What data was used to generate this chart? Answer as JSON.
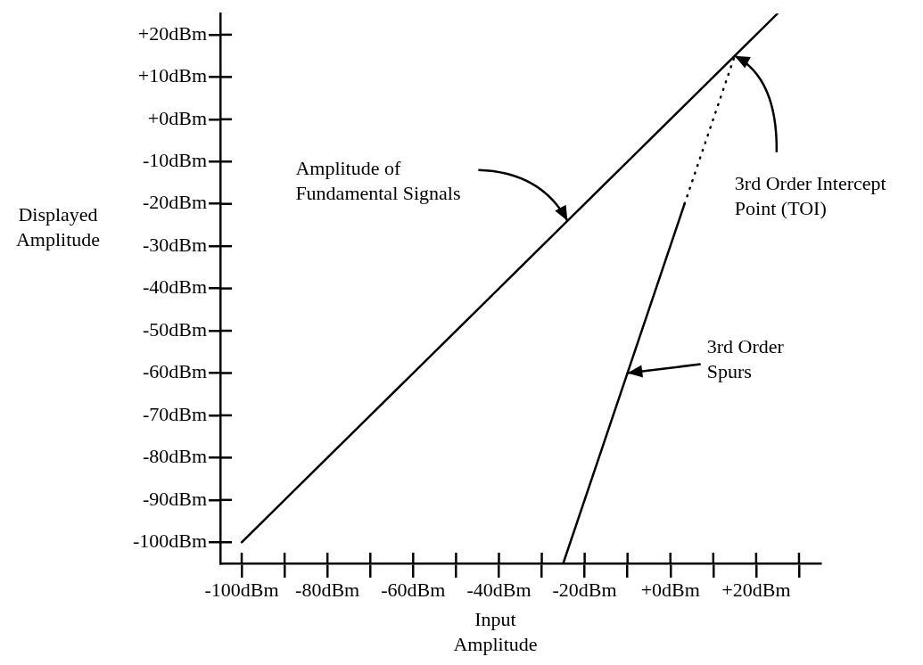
{
  "chart_data": {
    "type": "line",
    "xlabel": "Input\nAmplitude",
    "ylabel": "Displayed\nAmplitude",
    "xlim": [
      -105,
      35
    ],
    "ylim": [
      -105,
      25
    ],
    "xticks": [
      {
        "value": -100,
        "label": "-100dBm"
      },
      {
        "value": -90,
        "label": null
      },
      {
        "value": -80,
        "label": "-80dBm"
      },
      {
        "value": -70,
        "label": null
      },
      {
        "value": -60,
        "label": "-60dBm"
      },
      {
        "value": -50,
        "label": null
      },
      {
        "value": -40,
        "label": "-40dBm"
      },
      {
        "value": -30,
        "label": null
      },
      {
        "value": -20,
        "label": "-20dBm"
      },
      {
        "value": -10,
        "label": null
      },
      {
        "value": 0,
        "label": "+0dBm"
      },
      {
        "value": 10,
        "label": null
      },
      {
        "value": 20,
        "label": "+20dBm"
      },
      {
        "value": 30,
        "label": null
      }
    ],
    "yticks": [
      {
        "value": 20,
        "label": "+20dBm"
      },
      {
        "value": 10,
        "label": "+10dBm"
      },
      {
        "value": 0,
        "label": "+0dBm"
      },
      {
        "value": -10,
        "label": "-10dBm"
      },
      {
        "value": -20,
        "label": "-20dBm"
      },
      {
        "value": -30,
        "label": "-30dBm"
      },
      {
        "value": -40,
        "label": "-40dBm"
      },
      {
        "value": -50,
        "label": "-50dBm"
      },
      {
        "value": -60,
        "label": "-60dBm"
      },
      {
        "value": -70,
        "label": "-70dBm"
      },
      {
        "value": -80,
        "label": "-80dBm"
      },
      {
        "value": -90,
        "label": "-90dBm"
      },
      {
        "value": -100,
        "label": "-100dBm"
      }
    ],
    "marker": "none",
    "series": [
      {
        "color": "#000000",
        "x": [
          -100,
          25
        ],
        "values": [
          -100,
          25
        ],
        "line_style": "solid"
      },
      {
        "color": "#000000",
        "x": [
          -25,
          3.3
        ],
        "values": [
          -105,
          -20
        ],
        "line_style": "solid"
      },
      {
        "color": "#000000",
        "x": [
          3.3,
          15
        ],
        "values": [
          -20,
          15
        ],
        "line_style": "dotted"
      }
    ],
    "annotations": [
      {
        "text": "Amplitude of\nFundamental Signals",
        "x": -24,
        "y": -24
      },
      {
        "text": "3rd Order Intercept\nPoint (TOI)",
        "x": 15,
        "y": 15
      },
      {
        "text": "3rd Order\nSpurs",
        "x": -10,
        "y": -60
      }
    ]
  }
}
